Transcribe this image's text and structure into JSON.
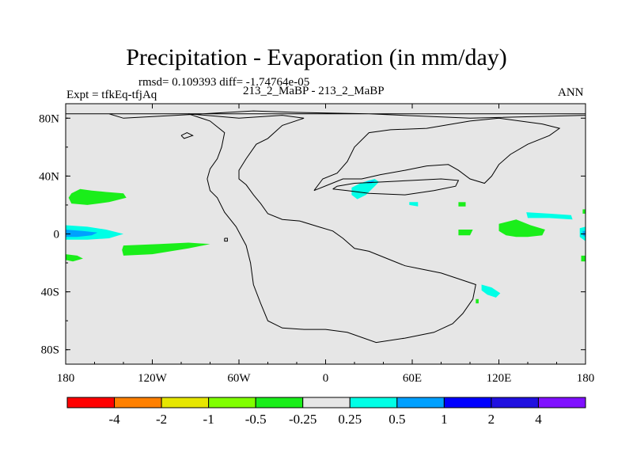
{
  "header": {
    "title": "Precipitation - Evaporation (in mm/day)",
    "subtitle": "rmsd= 0.109393 diff= -1.74764e-05",
    "experiment": "Expt = tfkEq-tfjAq",
    "cases": "213_2_MaBP - 213_2_MaBP",
    "season": "ANN"
  },
  "chart_data": {
    "type": "heatmap",
    "title": "Precipitation - Evaporation (in mm/day)",
    "projection": "cylindrical equidistant",
    "xlim": [
      -180,
      180
    ],
    "ylim": [
      -90,
      90
    ],
    "x_ticks": [
      {
        "value": -180,
        "label": "180"
      },
      {
        "value": -120,
        "label": "120W"
      },
      {
        "value": -60,
        "label": "60W"
      },
      {
        "value": 0,
        "label": "0"
      },
      {
        "value": 60,
        "label": "60E"
      },
      {
        "value": 120,
        "label": "120E"
      },
      {
        "value": 180,
        "label": "180"
      }
    ],
    "y_ticks": [
      {
        "value": 80,
        "label": "80N"
      },
      {
        "value": 40,
        "label": "40N"
      },
      {
        "value": 0,
        "label": "0"
      },
      {
        "value": -40,
        "label": "40S"
      },
      {
        "value": -80,
        "label": "80S"
      }
    ],
    "colorbar": {
      "boundaries": [
        "-4",
        "-2",
        "-1",
        "-0.5",
        "-0.25",
        "0.25",
        "0.5",
        "1",
        "2",
        "4"
      ],
      "colors": [
        "#ff0000",
        "#ff8000",
        "#e6e600",
        "#80ff00",
        "#1aee1a",
        "#e6e6e6",
        "#00ffe6",
        "#00a0ff",
        "#0000ff",
        "#2010e0",
        "#8010ff"
      ]
    },
    "background_color": "#e6e6e6",
    "anomaly_regions": [
      {
        "name": "N Pacific band",
        "level": "-0.5 to -0.25",
        "color": "#1aee1a",
        "polygon": [
          [
            -176,
            28
          ],
          [
            -170,
            31
          ],
          [
            -162,
            30
          ],
          [
            -152,
            29
          ],
          [
            -140,
            28
          ],
          [
            -138,
            25
          ],
          [
            -150,
            22
          ],
          [
            -165,
            20
          ],
          [
            -176,
            21
          ],
          [
            -178,
            25
          ]
        ]
      },
      {
        "name": "Central Pacific equatorial green",
        "level": "-0.5 to -0.25",
        "color": "#1aee1a",
        "polygon": [
          [
            -140,
            -8
          ],
          [
            -115,
            -7
          ],
          [
            -95,
            -6
          ],
          [
            -80,
            -7
          ],
          [
            -95,
            -10
          ],
          [
            -120,
            -14
          ],
          [
            -140,
            -15
          ],
          [
            -141,
            -11
          ]
        ]
      },
      {
        "name": "Date-line equatorial cyan",
        "level": "0.25 to 0.5",
        "color": "#00ffe6",
        "polygon": [
          [
            -180,
            6
          ],
          [
            -165,
            5
          ],
          [
            -152,
            3
          ],
          [
            -140,
            0
          ],
          [
            -150,
            -3
          ],
          [
            -165,
            -4
          ],
          [
            -180,
            -4
          ]
        ]
      },
      {
        "name": "Date-line equatorial core",
        "level": "0.5 to 1",
        "color": "#00a0ff",
        "polygon": [
          [
            -180,
            3
          ],
          [
            -168,
            2
          ],
          [
            -158,
            1
          ],
          [
            -162,
            -1
          ],
          [
            -172,
            -2
          ],
          [
            -180,
            -2
          ]
        ]
      },
      {
        "name": "SW Pacific green",
        "level": "-0.5 to -0.25",
        "color": "#1aee1a",
        "polygon": [
          [
            -180,
            -14
          ],
          [
            -172,
            -15
          ],
          [
            -168,
            -17
          ],
          [
            -175,
            -19
          ],
          [
            -180,
            -18
          ]
        ]
      },
      {
        "name": "Eastern Med cyan",
        "level": "0.25 to 0.5",
        "color": "#00ffe6",
        "polygon": [
          [
            18,
            32
          ],
          [
            24,
            35
          ],
          [
            30,
            37
          ],
          [
            34,
            38
          ],
          [
            37,
            36
          ],
          [
            34,
            33
          ],
          [
            28,
            27
          ],
          [
            22,
            24
          ],
          [
            18,
            27
          ]
        ]
      },
      {
        "name": "Eastern Med core",
        "level": "0.5 to 1",
        "color": "#00a0ff",
        "polygon": [
          [
            28,
            36
          ],
          [
            34,
            37
          ],
          [
            32,
            35
          ],
          [
            29,
            35
          ]
        ]
      },
      {
        "name": "Arabian cyan",
        "level": "0.25 to 0.5",
        "color": "#00ffe6",
        "polygon": [
          [
            58,
            22
          ],
          [
            64,
            22
          ],
          [
            64,
            19
          ],
          [
            58,
            20
          ]
        ]
      },
      {
        "name": "Arabian Sea green",
        "level": "-0.5 to -0.25",
        "color": "#1aee1a",
        "polygon": [
          [
            92,
            22
          ],
          [
            97,
            22
          ],
          [
            97,
            19
          ],
          [
            92,
            19
          ]
        ]
      },
      {
        "name": "Indian Ocean green",
        "level": "-0.5 to -0.25",
        "color": "#1aee1a",
        "polygon": [
          [
            92,
            3
          ],
          [
            102,
            3
          ],
          [
            100,
            -1
          ],
          [
            92,
            -1
          ]
        ]
      },
      {
        "name": "West Pacific green",
        "level": "-0.5 to -0.25",
        "color": "#1aee1a",
        "polygon": [
          [
            120,
            7
          ],
          [
            132,
            10
          ],
          [
            142,
            6
          ],
          [
            152,
            3
          ],
          [
            150,
            -1
          ],
          [
            140,
            -2
          ],
          [
            132,
            -2
          ],
          [
            125,
            -1
          ],
          [
            120,
            2
          ]
        ]
      },
      {
        "name": "NW Pacific cyan",
        "level": "0.25 to 0.5",
        "color": "#00ffe6",
        "polygon": [
          [
            139,
            15
          ],
          [
            155,
            14
          ],
          [
            170,
            13
          ],
          [
            171,
            10
          ],
          [
            155,
            11
          ],
          [
            140,
            11
          ]
        ]
      },
      {
        "name": "Far east green",
        "level": "-0.5 to -0.25",
        "color": "#1aee1a",
        "polygon": [
          [
            178,
            17
          ],
          [
            180,
            17
          ],
          [
            180,
            14
          ],
          [
            178,
            14
          ]
        ]
      },
      {
        "name": "Far east green 2",
        "level": "-0.5 to -0.25",
        "color": "#1aee1a",
        "polygon": [
          [
            177,
            -15
          ],
          [
            180,
            -15
          ],
          [
            180,
            -19
          ],
          [
            177,
            -19
          ]
        ]
      },
      {
        "name": "East edge equatorial cyan",
        "level": "0.25 to 0.5",
        "color": "#00ffe6",
        "polygon": [
          [
            176,
            4
          ],
          [
            180,
            5
          ],
          [
            180,
            -5
          ],
          [
            176,
            -2
          ]
        ]
      },
      {
        "name": "East edge equatorial core",
        "level": "0.5 to 1",
        "color": "#00a0ff",
        "polygon": [
          [
            178,
            2
          ],
          [
            180,
            2
          ],
          [
            180,
            -2
          ],
          [
            178,
            -1
          ]
        ]
      },
      {
        "name": "SE Indian cyan",
        "level": "0.25 to 0.5",
        "color": "#00ffe6",
        "polygon": [
          [
            108,
            -35
          ],
          [
            115,
            -37
          ],
          [
            121,
            -41
          ],
          [
            118,
            -44
          ],
          [
            112,
            -42
          ],
          [
            108,
            -39
          ]
        ]
      },
      {
        "name": "SE Indian green",
        "level": "-0.5 to -0.25",
        "color": "#1aee1a",
        "polygon": [
          [
            104,
            -45
          ],
          [
            106,
            -45
          ],
          [
            106,
            -48
          ],
          [
            104,
            -48
          ]
        ]
      }
    ],
    "coastlines": [
      {
        "name": "Supercontinent",
        "points": [
          [
            -180,
            83
          ],
          [
            -150,
            83
          ],
          [
            -140,
            80
          ],
          [
            -85,
            83
          ],
          [
            -50,
            85
          ],
          [
            -20,
            84
          ],
          [
            30,
            83
          ],
          [
            100,
            80
          ],
          [
            180,
            82
          ],
          [
            180,
            83
          ],
          [
            -180,
            83
          ]
        ]
      },
      {
        "name": "American landmass",
        "points": [
          [
            -95,
            83
          ],
          [
            -60,
            80
          ],
          [
            -30,
            82
          ],
          [
            -15,
            80
          ],
          [
            -30,
            75
          ],
          [
            -40,
            66
          ],
          [
            -48,
            62
          ],
          [
            -55,
            52
          ],
          [
            -60,
            44
          ],
          [
            -60,
            38
          ],
          [
            -55,
            34
          ],
          [
            -50,
            27
          ],
          [
            -45,
            21
          ],
          [
            -40,
            14
          ],
          [
            -30,
            10
          ],
          [
            -18,
            9
          ],
          [
            -5,
            5
          ],
          [
            5,
            2
          ],
          [
            12,
            -3
          ],
          [
            20,
            -10
          ],
          [
            30,
            -12
          ],
          [
            45,
            -18
          ],
          [
            55,
            -22
          ],
          [
            65,
            -24
          ],
          [
            80,
            -27
          ],
          [
            95,
            -32
          ],
          [
            104,
            -35
          ],
          [
            102,
            -45
          ],
          [
            95,
            -55
          ],
          [
            88,
            -62
          ],
          [
            75,
            -68
          ],
          [
            55,
            -72
          ],
          [
            35,
            -75
          ],
          [
            15,
            -68
          ],
          [
            0,
            -66
          ],
          [
            -15,
            -66
          ],
          [
            -30,
            -65
          ],
          [
            -40,
            -60
          ],
          [
            -45,
            -48
          ],
          [
            -50,
            -35
          ],
          [
            -52,
            -20
          ],
          [
            -55,
            -8
          ],
          [
            -62,
            5
          ],
          [
            -70,
            15
          ],
          [
            -75,
            25
          ],
          [
            -80,
            30
          ],
          [
            -82,
            38
          ],
          [
            -80,
            45
          ],
          [
            -75,
            52
          ],
          [
            -72,
            60
          ],
          [
            -70,
            70
          ],
          [
            -80,
            78
          ],
          [
            -95,
            83
          ]
        ]
      },
      {
        "name": "Eastern landmass",
        "points": [
          [
            -8,
            30
          ],
          [
            2,
            34
          ],
          [
            12,
            38
          ],
          [
            25,
            38
          ],
          [
            38,
            41
          ],
          [
            55,
            44
          ],
          [
            70,
            47
          ],
          [
            85,
            48
          ],
          [
            92,
            44
          ],
          [
            100,
            38
          ],
          [
            110,
            35
          ],
          [
            115,
            40
          ],
          [
            120,
            48
          ],
          [
            128,
            55
          ],
          [
            140,
            62
          ],
          [
            155,
            68
          ],
          [
            162,
            73
          ],
          [
            150,
            76
          ],
          [
            120,
            80
          ],
          [
            100,
            78
          ],
          [
            70,
            73
          ],
          [
            45,
            72
          ],
          [
            30,
            70
          ],
          [
            20,
            60
          ],
          [
            15,
            50
          ],
          [
            8,
            42
          ],
          [
            -2,
            38
          ],
          [
            -8,
            30
          ]
        ]
      },
      {
        "name": "Inner sea",
        "points": [
          [
            5,
            31
          ],
          [
            15,
            30
          ],
          [
            30,
            28
          ],
          [
            55,
            27
          ],
          [
            75,
            30
          ],
          [
            90,
            33
          ],
          [
            92,
            37
          ],
          [
            80,
            38
          ],
          [
            60,
            37
          ],
          [
            40,
            36
          ],
          [
            20,
            35
          ],
          [
            8,
            33
          ],
          [
            5,
            31
          ]
        ]
      },
      {
        "name": "Small island",
        "points": [
          [
            -70,
            -3
          ],
          [
            -68,
            -3
          ],
          [
            -68,
            -5
          ],
          [
            -70,
            -5
          ],
          [
            -70,
            -3
          ]
        ]
      },
      {
        "name": "Northern gulf",
        "points": [
          [
            -100,
            68
          ],
          [
            -96,
            70
          ],
          [
            -92,
            68
          ],
          [
            -98,
            66
          ],
          [
            -100,
            68
          ]
        ]
      }
    ]
  }
}
